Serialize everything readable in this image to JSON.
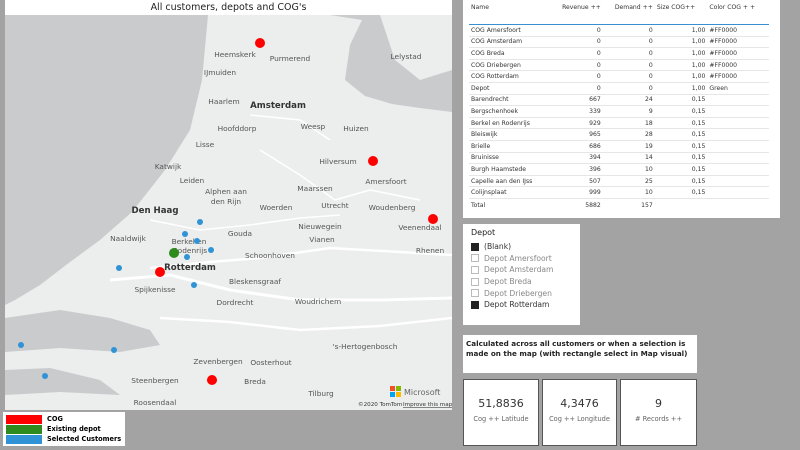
{
  "map": {
    "title": "All customers, depots and COG's",
    "labels": [
      "Heemskerk",
      "Purmerend",
      "Lelystad",
      "IJmuiden",
      "Haarlem",
      "Amsterdam",
      "Hoofddorp",
      "Weesp",
      "Huizen",
      "Lisse",
      "Hilversum",
      "Katwijk",
      "Leiden",
      "Amersfoort",
      "Alphen aan",
      "den Rijn",
      "Maarssen",
      "Den Haag",
      "Woerden",
      "Utrecht",
      "Woudenberg",
      "Veenendaal",
      "Naaldwijk",
      "Berkel en",
      "Rodenrijs",
      "Gouda",
      "Nieuwegein",
      "Vianen",
      "Rhenen",
      "Rotterdam",
      "Schoonhoven",
      "Spijkenisse",
      "Bleskensgraaf",
      "Dordrecht",
      "Woudrichem",
      "'s-Hertogenbosch",
      "Zevenbergen",
      "Oosterhout",
      "Steenbergen",
      "Breda",
      "Roosendaal",
      "Tilburg"
    ],
    "attribution": "©2020 TomTom",
    "improve": "Improve this map",
    "logo": "Microsoft"
  },
  "legend": [
    {
      "label": "COG",
      "color": "#ff0000"
    },
    {
      "label": "Existing depot",
      "color": "#2e8b1e"
    },
    {
      "label": "Selected Customers",
      "color": "#2f93d6"
    }
  ],
  "table": {
    "columns": [
      "Name",
      "Revenue ++",
      "Demand ++",
      "Size COG++",
      "Color COG + +"
    ],
    "rows": [
      [
        "COG Amersfoort",
        "0",
        "0",
        "1,00",
        "#FF0000"
      ],
      [
        "COG Amsterdam",
        "0",
        "0",
        "1,00",
        "#FF0000"
      ],
      [
        "COG Breda",
        "0",
        "0",
        "1,00",
        "#FF0000"
      ],
      [
        "COG Driebergen",
        "0",
        "0",
        "1,00",
        "#FF0000"
      ],
      [
        "COG Rotterdam",
        "0",
        "0",
        "1,00",
        "#FF0000"
      ],
      [
        "Depot",
        "0",
        "0",
        "1,00",
        "Green"
      ],
      [
        "Barendrecht",
        "667",
        "24",
        "0,15",
        ""
      ],
      [
        "Bergschenhoek",
        "339",
        "9",
        "0,15",
        ""
      ],
      [
        "Berkel en Rodenrijs",
        "929",
        "18",
        "0,15",
        ""
      ],
      [
        "Bleiswijk",
        "965",
        "28",
        "0,15",
        ""
      ],
      [
        "Brielle",
        "686",
        "19",
        "0,15",
        ""
      ],
      [
        "Bruinisse",
        "394",
        "14",
        "0,15",
        ""
      ],
      [
        "Burgh Haamstede",
        "396",
        "10",
        "0,15",
        ""
      ],
      [
        "Capelle aan den IJss",
        "507",
        "25",
        "0,15",
        ""
      ],
      [
        "Colijnsplaat",
        "999",
        "10",
        "0,15",
        ""
      ]
    ],
    "total": [
      "Total",
      "5882",
      "157"
    ]
  },
  "slicer": {
    "title": "Depot",
    "items": [
      {
        "label": "(Blank)",
        "checked": true
      },
      {
        "label": "Depot Amersfoort",
        "checked": false
      },
      {
        "label": "Depot Amsterdam",
        "checked": false
      },
      {
        "label": "Depot Breda",
        "checked": false
      },
      {
        "label": "Depot Driebergen",
        "checked": false
      },
      {
        "label": "Depot Rotterdam",
        "checked": true
      }
    ]
  },
  "note": "Calculated across all customers or when a selection is made on the map (with rectangle select in Map visual)",
  "cards": [
    {
      "value": "51,8836",
      "label": "Cog ++ Latitude"
    },
    {
      "value": "4,3476",
      "label": "Cog ++ Longitude"
    },
    {
      "value": "9",
      "label": "# Records ++"
    }
  ]
}
